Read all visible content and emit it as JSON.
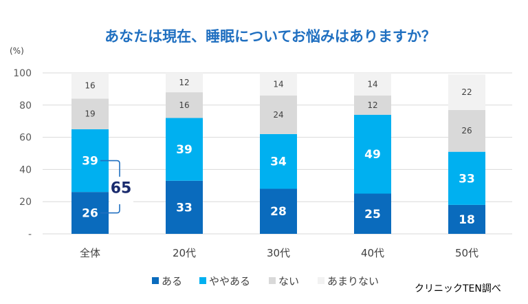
{
  "chart_data": {
    "type": "stacked-bar",
    "title": "あなたは現在、睡眠についてお悩みはありますか？",
    "ylabel": "(%)",
    "ylim": [
      0,
      100
    ],
    "yticks": [
      "-",
      "20",
      "40",
      "60",
      "80",
      "100"
    ],
    "categories": [
      "全体",
      "20代",
      "30代",
      "40代",
      "50代"
    ],
    "series": [
      {
        "name": "ある",
        "color": "#0a6bbd",
        "values": [
          26,
          33,
          28,
          25,
          18
        ]
      },
      {
        "name": "ややある",
        "color": "#00b0f0",
        "values": [
          39,
          39,
          34,
          49,
          33
        ]
      },
      {
        "name": "ない",
        "color": "#d9d9d9",
        "values": [
          19,
          16,
          24,
          12,
          26
        ]
      },
      {
        "name": "あまりない",
        "color": "#f2f2f2",
        "values": [
          16,
          12,
          14,
          14,
          22
        ]
      }
    ],
    "annotation": {
      "category": "全体",
      "label": "65"
    },
    "source": "クリニックTEN調べ"
  }
}
